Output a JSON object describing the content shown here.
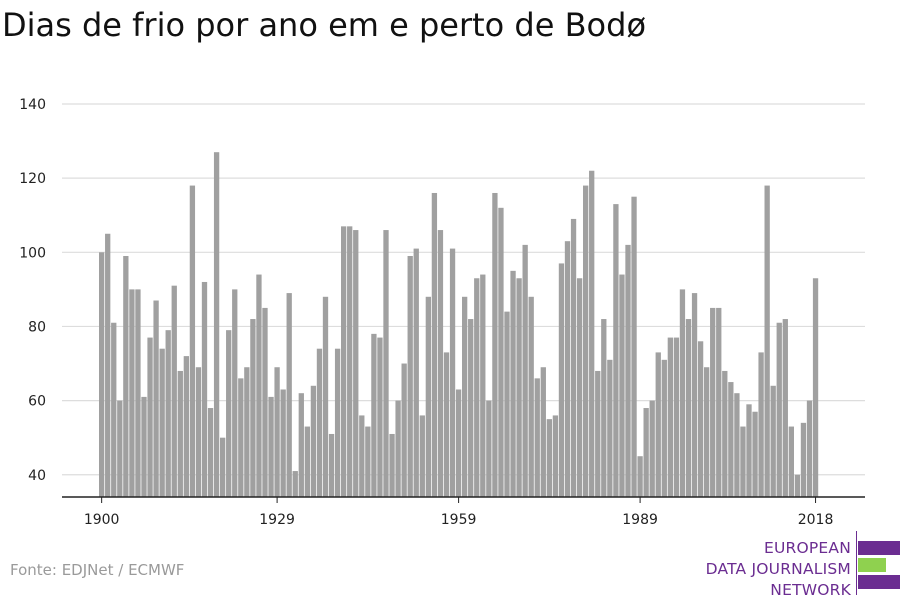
{
  "title": "Dias de frio por ano em e perto de Bodø",
  "source": "Fonte: EDJNet / ECMWF",
  "logo": {
    "line1": "EUROPEAN",
    "line2": "DATA JOURNALISM",
    "line3": "NETWORK"
  },
  "colors": {
    "bar": "#a0a0a0",
    "grid": "#dddddd",
    "axis": "#222222",
    "logo_purple": "#6b2d91",
    "logo_green": "#8fd14f"
  },
  "chart_data": {
    "type": "bar",
    "title": "Dias de frio por ano em e perto de Bodø",
    "xlabel": "",
    "ylabel": "",
    "ylim": [
      34,
      140
    ],
    "yticks": [
      40,
      60,
      80,
      100,
      120,
      140
    ],
    "xticks": [
      1900,
      1929,
      1959,
      1989,
      2018
    ],
    "grid": true,
    "x": [
      1900,
      1901,
      1902,
      1903,
      1904,
      1905,
      1906,
      1907,
      1908,
      1909,
      1910,
      1911,
      1912,
      1913,
      1914,
      1915,
      1916,
      1917,
      1918,
      1919,
      1920,
      1921,
      1922,
      1923,
      1924,
      1925,
      1926,
      1927,
      1928,
      1929,
      1930,
      1931,
      1932,
      1933,
      1934,
      1935,
      1936,
      1937,
      1938,
      1939,
      1940,
      1941,
      1942,
      1943,
      1944,
      1945,
      1946,
      1947,
      1948,
      1949,
      1950,
      1951,
      1952,
      1953,
      1954,
      1955,
      1956,
      1957,
      1958,
      1959,
      1960,
      1961,
      1962,
      1963,
      1964,
      1965,
      1966,
      1967,
      1968,
      1969,
      1970,
      1971,
      1972,
      1973,
      1974,
      1975,
      1976,
      1977,
      1978,
      1979,
      1980,
      1981,
      1982,
      1983,
      1984,
      1985,
      1986,
      1987,
      1988,
      1989,
      1990,
      1991,
      1992,
      1993,
      1994,
      1995,
      1996,
      1997,
      1998,
      1999,
      2000,
      2001,
      2002,
      2003,
      2004,
      2005,
      2006,
      2007,
      2008,
      2009,
      2010,
      2011,
      2012,
      2013,
      2014,
      2015,
      2016,
      2017,
      2018
    ],
    "values": [
      100,
      105,
      81,
      60,
      99,
      90,
      90,
      61,
      77,
      87,
      74,
      79,
      91,
      68,
      72,
      118,
      69,
      92,
      58,
      127,
      50,
      79,
      90,
      66,
      69,
      82,
      94,
      85,
      61,
      69,
      63,
      89,
      41,
      62,
      53,
      64,
      74,
      88,
      51,
      74,
      107,
      107,
      106,
      56,
      53,
      78,
      77,
      106,
      51,
      60,
      70,
      99,
      101,
      56,
      88,
      116,
      106,
      73,
      101,
      63,
      88,
      82,
      93,
      94,
      60,
      116,
      112,
      84,
      95,
      93,
      102,
      88,
      66,
      69,
      55,
      56,
      97,
      103,
      109,
      93,
      118,
      122,
      68,
      82,
      71,
      113,
      94,
      102,
      115,
      45,
      58,
      60,
      73,
      71,
      77,
      77,
      90,
      82,
      89,
      76,
      69,
      85,
      85,
      68,
      65,
      62,
      53,
      59,
      57,
      73,
      118,
      64,
      81,
      82,
      53,
      40,
      54,
      60,
      93
    ]
  }
}
